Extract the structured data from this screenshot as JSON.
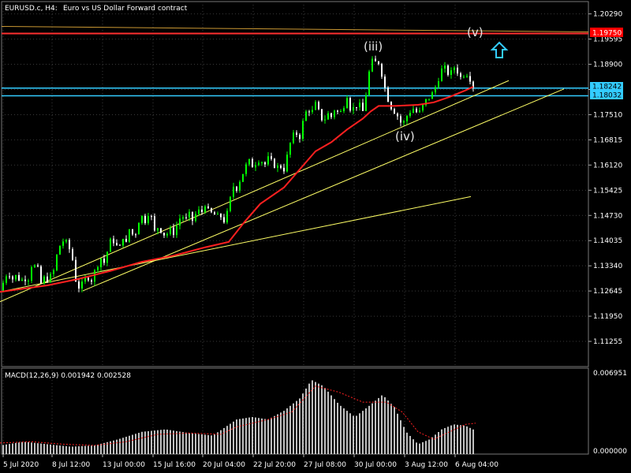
{
  "header": {
    "symbol": "EURUSD.c, H4:",
    "description": "Euro vs US Dollar Forward contract"
  },
  "colors": {
    "background": "#000000",
    "grid": "#3a3a3a",
    "bull_candle": "#00ff00",
    "bear_candle": "#ffffff",
    "ma_line": "#ff2020",
    "trendline": "#ffff66",
    "support_lines": "#33ccff",
    "resistance_line": "#ff3030",
    "price_tag_blue": "#33ccff",
    "price_tag_red": "#ff0000",
    "macd_hist": "#ffffff",
    "macd_signal": "#ff2020",
    "arrow": "#33ccff"
  },
  "annotations": {
    "wave_iii": "(iii)",
    "wave_iv": "(iv)",
    "wave_v": "(v)",
    "arrow_icon": "up-arrow-icon"
  },
  "price_tags": {
    "resistance": "1.19750",
    "support_upper": "1.18242",
    "support_lower": "1.18032"
  },
  "macd": {
    "label": "MACD(12,26,9) 0.001942 0.002528",
    "axis_top": "0.006951",
    "axis_bottom": "0.000000"
  },
  "chart_data": {
    "type": "candlestick",
    "price_axis_ticks": [
      "1.20290",
      "1.19595",
      "1.18900",
      "1.18205",
      "1.17510",
      "1.16815",
      "1.16120",
      "1.15425",
      "1.14730",
      "1.14035",
      "1.13340",
      "1.12645",
      "1.11950",
      "1.11255"
    ],
    "time_axis_ticks": [
      "5 Jul 2020",
      "8 Jul 12:00",
      "13 Jul 00:00",
      "15 Jul 16:00",
      "20 Jul 04:00",
      "22 Jul 20:00",
      "27 Jul 08:00",
      "30 Jul 00:00",
      "3 Aug 12:00",
      "6 Aug 04:00"
    ],
    "y_range": [
      1.1056,
      1.2063
    ],
    "price_path": [
      [
        0,
        1.1262
      ],
      [
        6,
        1.13
      ],
      [
        10,
        1.1318
      ],
      [
        16,
        1.1298
      ],
      [
        22,
        1.131
      ],
      [
        26,
        1.1285
      ],
      [
        30,
        1.1305
      ],
      [
        35,
        1.129
      ],
      [
        40,
        1.1335
      ],
      [
        45,
        1.1332
      ],
      [
        50,
        1.132
      ],
      [
        52,
        1.1285
      ],
      [
        56,
        1.13
      ],
      [
        60,
        1.1296
      ],
      [
        66,
        1.131
      ],
      [
        70,
        1.133
      ],
      [
        74,
        1.1395
      ],
      [
        78,
        1.1385
      ],
      [
        82,
        1.142
      ],
      [
        86,
        1.1375
      ],
      [
        90,
        1.1385
      ],
      [
        95,
        1.13
      ],
      [
        100,
        1.1275
      ],
      [
        105,
        1.1285
      ],
      [
        110,
        1.1305
      ],
      [
        116,
        1.1295
      ],
      [
        122,
        1.133
      ],
      [
        128,
        1.1355
      ],
      [
        133,
        1.134
      ],
      [
        138,
        1.1395
      ],
      [
        142,
        1.141
      ],
      [
        147,
        1.139
      ],
      [
        152,
        1.1385
      ],
      [
        156,
        1.1415
      ],
      [
        160,
        1.1395
      ],
      [
        165,
        1.1445
      ],
      [
        170,
        1.1405
      ],
      [
        175,
        1.1455
      ],
      [
        180,
        1.147
      ],
      [
        185,
        1.1455
      ],
      [
        190,
        1.1495
      ],
      [
        195,
        1.1425
      ],
      [
        200,
        1.144
      ],
      [
        205,
        1.143
      ],
      [
        210,
        1.1415
      ],
      [
        215,
        1.1435
      ],
      [
        220,
        1.1425
      ],
      [
        225,
        1.145
      ],
      [
        230,
        1.1475
      ],
      [
        235,
        1.146
      ],
      [
        240,
        1.1475
      ],
      [
        245,
        1.1455
      ],
      [
        250,
        1.149
      ],
      [
        255,
        1.1478
      ],
      [
        260,
        1.1505
      ],
      [
        265,
        1.148
      ],
      [
        270,
        1.1478
      ],
      [
        275,
        1.147
      ],
      [
        280,
        1.147
      ],
      [
        285,
        1.1455
      ],
      [
        290,
        1.1495
      ],
      [
        295,
        1.1555
      ],
      [
        300,
        1.1548
      ],
      [
        305,
        1.1575
      ],
      [
        310,
        1.16
      ],
      [
        315,
        1.1625
      ],
      [
        320,
        1.161
      ],
      [
        325,
        1.162
      ],
      [
        330,
        1.163
      ],
      [
        335,
        1.161
      ],
      [
        340,
        1.163
      ],
      [
        345,
        1.162
      ],
      [
        350,
        1.1605
      ],
      [
        355,
        1.161
      ],
      [
        360,
        1.16
      ],
      [
        365,
        1.1645
      ],
      [
        370,
        1.169
      ],
      [
        375,
        1.17
      ],
      [
        380,
        1.169
      ],
      [
        385,
        1.174
      ],
      [
        390,
        1.177
      ],
      [
        395,
        1.1755
      ],
      [
        400,
        1.178
      ],
      [
        405,
        1.1755
      ],
      [
        410,
        1.173
      ],
      [
        415,
        1.1755
      ],
      [
        420,
        1.1745
      ],
      [
        425,
        1.177
      ],
      [
        430,
        1.175
      ],
      [
        435,
        1.177
      ],
      [
        440,
        1.1805
      ],
      [
        445,
        1.176
      ],
      [
        450,
        1.1775
      ],
      [
        455,
        1.178
      ],
      [
        460,
        1.176
      ],
      [
        465,
        1.182
      ],
      [
        470,
        1.19
      ],
      [
        475,
        1.1895
      ],
      [
        480,
        1.1895
      ],
      [
        485,
        1.1855
      ],
      [
        490,
        1.1805
      ],
      [
        495,
        1.1775
      ],
      [
        500,
        1.176
      ],
      [
        505,
        1.1745
      ],
      [
        510,
        1.172
      ],
      [
        515,
        1.1745
      ],
      [
        520,
        1.176
      ],
      [
        525,
        1.177
      ],
      [
        530,
        1.175
      ],
      [
        535,
        1.177
      ],
      [
        540,
        1.179
      ],
      [
        545,
        1.18
      ],
      [
        550,
        1.1815
      ],
      [
        555,
        1.1845
      ],
      [
        560,
        1.1875
      ],
      [
        565,
        1.188
      ],
      [
        570,
        1.1855
      ],
      [
        575,
        1.1885
      ],
      [
        580,
        1.187
      ],
      [
        585,
        1.185
      ],
      [
        590,
        1.187
      ],
      [
        595,
        1.1855
      ],
      [
        600,
        1.183
      ]
    ],
    "ma_path": [
      [
        0,
        1.1262
      ],
      [
        60,
        1.128
      ],
      [
        100,
        1.1298
      ],
      [
        140,
        1.132
      ],
      [
        180,
        1.1345
      ],
      [
        220,
        1.1362
      ],
      [
        260,
        1.1385
      ],
      [
        290,
        1.14
      ],
      [
        310,
        1.1455
      ],
      [
        330,
        1.1505
      ],
      [
        360,
        1.155
      ],
      [
        380,
        1.16
      ],
      [
        400,
        1.165
      ],
      [
        420,
        1.1675
      ],
      [
        440,
        1.171
      ],
      [
        460,
        1.174
      ],
      [
        470,
        1.176
      ],
      [
        480,
        1.1775
      ],
      [
        500,
        1.1775
      ],
      [
        530,
        1.1778
      ],
      [
        550,
        1.1785
      ],
      [
        570,
        1.18
      ],
      [
        590,
        1.1818
      ],
      [
        600,
        1.1828
      ]
    ],
    "trendlines": [
      {
        "x1": 0,
        "y1": 1.1235,
        "x2": 645,
        "y2": 1.1845
      },
      {
        "x1": 105,
        "y1": 1.1265,
        "x2": 715,
        "y2": 1.1822
      },
      {
        "x1": 0,
        "y1": 1.1262,
        "x2": 597,
        "y2": 1.1525
      }
    ],
    "horizontal_levels": [
      {
        "price": 1.1975,
        "role": "resistance"
      },
      {
        "price": 1.18242,
        "role": "support"
      },
      {
        "price": 1.18032,
        "role": "support"
      }
    ],
    "macd_hist_path": [
      [
        0,
        0.0007
      ],
      [
        30,
        0.001
      ],
      [
        60,
        0.0008
      ],
      [
        90,
        0.0006
      ],
      [
        120,
        0.0007
      ],
      [
        150,
        0.0012
      ],
      [
        180,
        0.0018
      ],
      [
        210,
        0.002
      ],
      [
        240,
        0.0017
      ],
      [
        270,
        0.0015
      ],
      [
        300,
        0.0028
      ],
      [
        320,
        0.003
      ],
      [
        340,
        0.0028
      ],
      [
        360,
        0.0035
      ],
      [
        380,
        0.0045
      ],
      [
        395,
        0.006
      ],
      [
        410,
        0.0055
      ],
      [
        430,
        0.004
      ],
      [
        450,
        0.003
      ],
      [
        470,
        0.004
      ],
      [
        485,
        0.0048
      ],
      [
        500,
        0.0038
      ],
      [
        515,
        0.0018
      ],
      [
        530,
        0.0008
      ],
      [
        545,
        0.0012
      ],
      [
        560,
        0.002
      ],
      [
        575,
        0.0024
      ],
      [
        590,
        0.0023
      ],
      [
        603,
        0.0019
      ]
    ],
    "macd_signal_path": [
      [
        0,
        0.0009
      ],
      [
        40,
        0.001
      ],
      [
        80,
        0.0008
      ],
      [
        120,
        0.0007
      ],
      [
        160,
        0.001
      ],
      [
        200,
        0.0016
      ],
      [
        240,
        0.0017
      ],
      [
        280,
        0.0016
      ],
      [
        300,
        0.0022
      ],
      [
        340,
        0.0028
      ],
      [
        370,
        0.0034
      ],
      [
        390,
        0.0048
      ],
      [
        400,
        0.0055
      ],
      [
        430,
        0.005
      ],
      [
        460,
        0.0042
      ],
      [
        490,
        0.0042
      ],
      [
        510,
        0.0034
      ],
      [
        530,
        0.0018
      ],
      [
        550,
        0.0012
      ],
      [
        570,
        0.0018
      ],
      [
        590,
        0.0024
      ],
      [
        603,
        0.0025
      ]
    ],
    "macd_range": [
      0,
      0.006951
    ]
  }
}
